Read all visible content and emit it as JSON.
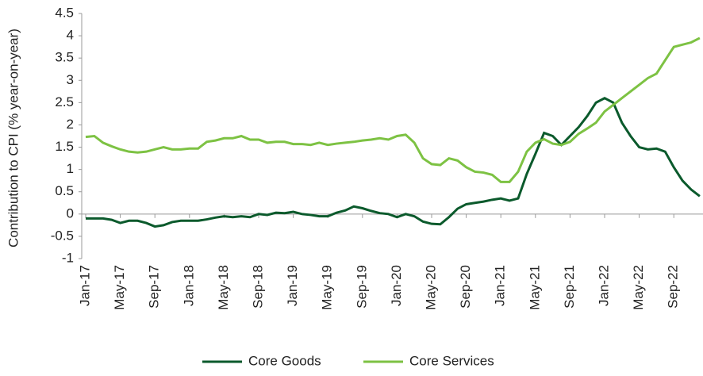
{
  "chart_data": {
    "type": "line",
    "y_label": "Contribution to CPI (% year-on-year)",
    "categories": [
      "Jan-17",
      null,
      null,
      null,
      "May-17",
      null,
      null,
      null,
      "Sep-17",
      null,
      null,
      null,
      "Jan-18",
      null,
      null,
      null,
      "May-18",
      null,
      null,
      null,
      "Sep-18",
      null,
      null,
      null,
      "Jan-19",
      null,
      null,
      null,
      "May-19",
      null,
      null,
      null,
      "Sep-19",
      null,
      null,
      null,
      "Jan-20",
      null,
      null,
      null,
      "May-20",
      null,
      null,
      null,
      "Sep-20",
      null,
      null,
      null,
      "Jan-21",
      null,
      null,
      null,
      "May-21",
      null,
      null,
      null,
      "Sep-21",
      null,
      null,
      null,
      "Jan-22",
      null,
      null,
      null,
      "May-22",
      null,
      null,
      null,
      "Sep-22",
      null,
      null,
      null
    ],
    "series": [
      {
        "name": "Core Goods",
        "color": "#0b5a2c",
        "values": [
          -0.1,
          -0.1,
          -0.1,
          -0.13,
          -0.2,
          -0.15,
          -0.15,
          -0.2,
          -0.28,
          -0.25,
          -0.18,
          -0.15,
          -0.15,
          -0.15,
          -0.12,
          -0.08,
          -0.05,
          -0.07,
          -0.05,
          -0.07,
          0,
          -0.02,
          0.03,
          0.02,
          0.05,
          0,
          -0.02,
          -0.05,
          -0.05,
          0.03,
          0.08,
          0.17,
          0.13,
          0.07,
          0.02,
          0,
          -0.07,
          0,
          -0.05,
          -0.17,
          -0.22,
          -0.23,
          -0.07,
          0.12,
          0.22,
          0.25,
          0.28,
          0.32,
          0.35,
          0.3,
          0.35,
          0.9,
          1.35,
          1.82,
          1.75,
          1.55,
          1.75,
          1.95,
          2.2,
          2.5,
          2.6,
          2.5,
          2.05,
          1.75,
          1.5,
          1.45,
          1.47,
          1.4,
          1.05,
          0.75,
          0.55,
          0.4
        ]
      },
      {
        "name": "Core Services",
        "color": "#7dc243",
        "values": [
          1.73,
          1.75,
          1.6,
          1.52,
          1.45,
          1.4,
          1.38,
          1.4,
          1.45,
          1.5,
          1.45,
          1.45,
          1.47,
          1.47,
          1.62,
          1.65,
          1.7,
          1.7,
          1.75,
          1.67,
          1.67,
          1.6,
          1.62,
          1.62,
          1.57,
          1.57,
          1.55,
          1.6,
          1.55,
          1.58,
          1.6,
          1.62,
          1.65,
          1.67,
          1.7,
          1.67,
          1.75,
          1.78,
          1.6,
          1.25,
          1.12,
          1.1,
          1.25,
          1.2,
          1.05,
          0.95,
          0.93,
          0.88,
          0.72,
          0.72,
          0.95,
          1.4,
          1.6,
          1.68,
          1.58,
          1.55,
          1.62,
          1.8,
          1.92,
          2.05,
          2.3,
          2.45,
          2.6,
          2.75,
          2.9,
          3.05,
          3.15,
          3.45,
          3.75,
          3.8,
          3.85,
          3.95
        ]
      }
    ],
    "ylim": [
      -1,
      4.5
    ],
    "yticks": [
      -1,
      -0.5,
      0,
      0.5,
      1,
      1.5,
      2,
      2.5,
      3,
      3.5,
      4,
      4.5
    ],
    "grid": false
  }
}
